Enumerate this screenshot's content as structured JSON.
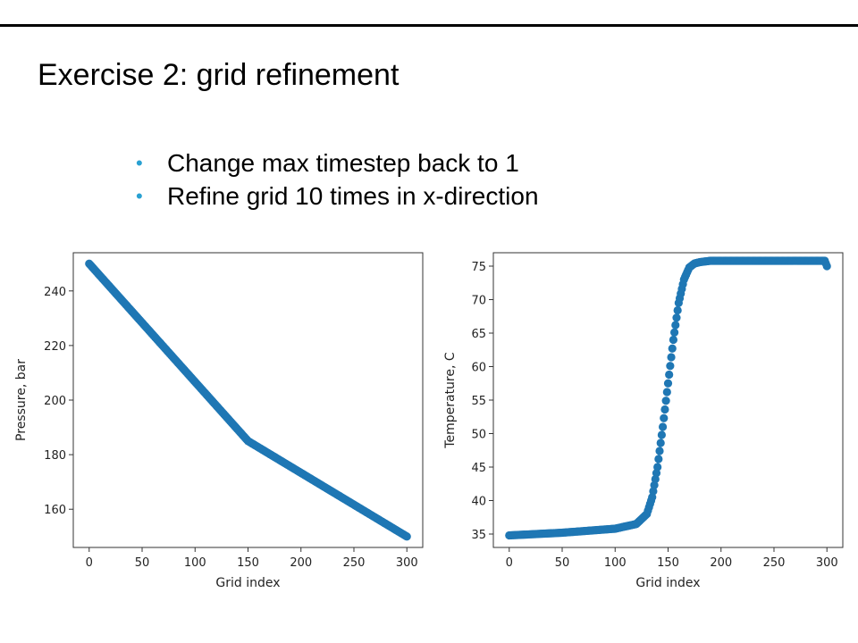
{
  "slide": {
    "title": "Exercise 2: grid refinement",
    "bullets": [
      "Change max timestep back to 1",
      "Refine grid 10 times in x-direction"
    ],
    "bullet_color": "#29a1d2"
  },
  "chart_data": [
    {
      "type": "scatter",
      "title": "",
      "xlabel": "Grid index",
      "ylabel": "Pressure, bar",
      "xlim": [
        -15,
        315
      ],
      "ylim": [
        146,
        254
      ],
      "xticks": [
        0,
        50,
        100,
        150,
        200,
        250,
        300
      ],
      "yticks": [
        160,
        180,
        200,
        220,
        240
      ],
      "marker_color": "#1f77b4",
      "grid": false,
      "series": [
        {
          "x": [
            0,
            150,
            300
          ],
          "y": [
            250,
            185,
            150
          ]
        }
      ]
    },
    {
      "type": "scatter",
      "title": "",
      "xlabel": "Grid index",
      "ylabel": "Temperature, C",
      "xlim": [
        -15,
        315
      ],
      "ylim": [
        33,
        77
      ],
      "xticks": [
        0,
        50,
        100,
        150,
        200,
        250,
        300
      ],
      "yticks": [
        35,
        40,
        45,
        50,
        55,
        60,
        65,
        70,
        75
      ],
      "marker_color": "#1f77b4",
      "grid": false,
      "series": [
        {
          "x": [
            0,
            50,
            100,
            120,
            130,
            135,
            140,
            145,
            150,
            155,
            160,
            165,
            170,
            175,
            180,
            190,
            200,
            250,
            298,
            300
          ],
          "y": [
            34.8,
            35.2,
            35.8,
            36.5,
            38.0,
            40.5,
            45.0,
            51.0,
            57.5,
            64.0,
            69.5,
            73.0,
            74.8,
            75.4,
            75.6,
            75.8,
            75.8,
            75.8,
            75.8,
            75.0
          ]
        }
      ]
    }
  ]
}
